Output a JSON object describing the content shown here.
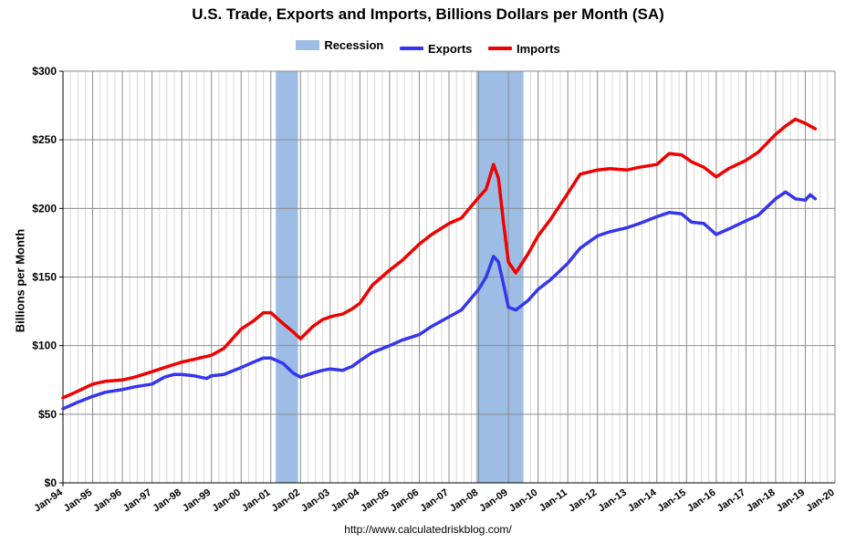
{
  "chart_data": {
    "type": "line",
    "title": "U.S. Trade, Exports and Imports, Billions Dollars per Month (SA)",
    "xlabel": "",
    "ylabel": "Billions per Month",
    "source": "http://www.calculatedriskblog.com/",
    "ylim": [
      0,
      300
    ],
    "xlim": [
      "1994-01",
      "2020-01"
    ],
    "grid": true,
    "legend_position": "top-center",
    "y_ticks": [
      {
        "value": 0,
        "label": "$0"
      },
      {
        "value": 50,
        "label": "$50"
      },
      {
        "value": 100,
        "label": "$100"
      },
      {
        "value": 150,
        "label": "$150"
      },
      {
        "value": 200,
        "label": "$200"
      },
      {
        "value": 250,
        "label": "$250"
      },
      {
        "value": 300,
        "label": "$300"
      }
    ],
    "x_ticks": [
      "Jan-94",
      "Jan-95",
      "Jan-96",
      "Jan-97",
      "Jan-98",
      "Jan-99",
      "Jan-00",
      "Jan-01",
      "Jan-02",
      "Jan-03",
      "Jan-04",
      "Jan-05",
      "Jan-06",
      "Jan-07",
      "Jan-08",
      "Jan-09",
      "Jan-10",
      "Jan-11",
      "Jan-12",
      "Jan-13",
      "Jan-14",
      "Jan-15",
      "Jan-16",
      "Jan-17",
      "Jan-18",
      "Jan-19",
      "Jan-20"
    ],
    "recessions": [
      {
        "start": "2001-03",
        "end": "2001-11"
      },
      {
        "start": "2007-12",
        "end": "2009-06"
      }
    ],
    "legend": [
      {
        "name": "Recession",
        "color": "#9dbde5",
        "kind": "box"
      },
      {
        "name": "Exports",
        "color": "#3535f0",
        "kind": "line"
      },
      {
        "name": "Imports",
        "color": "#f00000",
        "kind": "line"
      }
    ],
    "series": [
      {
        "name": "Exports",
        "color": "#3535f0",
        "points": [
          [
            "1994-01",
            54
          ],
          [
            "1994-06",
            58
          ],
          [
            "1995-01",
            63
          ],
          [
            "1995-06",
            66
          ],
          [
            "1996-01",
            68
          ],
          [
            "1996-06",
            70
          ],
          [
            "1997-01",
            72
          ],
          [
            "1997-06",
            77
          ],
          [
            "1997-10",
            79
          ],
          [
            "1998-01",
            79
          ],
          [
            "1998-06",
            78
          ],
          [
            "1998-11",
            76
          ],
          [
            "1999-01",
            78
          ],
          [
            "1999-06",
            79
          ],
          [
            "2000-01",
            84
          ],
          [
            "2000-06",
            88
          ],
          [
            "2000-10",
            91
          ],
          [
            "2001-01",
            91
          ],
          [
            "2001-06",
            87
          ],
          [
            "2001-10",
            80
          ],
          [
            "2002-01",
            77
          ],
          [
            "2002-06",
            80
          ],
          [
            "2002-10",
            82
          ],
          [
            "2003-01",
            83
          ],
          [
            "2003-06",
            82
          ],
          [
            "2003-10",
            85
          ],
          [
            "2004-01",
            89
          ],
          [
            "2004-06",
            95
          ],
          [
            "2005-01",
            100
          ],
          [
            "2005-06",
            104
          ],
          [
            "2006-01",
            108
          ],
          [
            "2006-06",
            114
          ],
          [
            "2007-01",
            121
          ],
          [
            "2007-06",
            126
          ],
          [
            "2008-01",
            141
          ],
          [
            "2008-04",
            150
          ],
          [
            "2008-07",
            165
          ],
          [
            "2008-09",
            161
          ],
          [
            "2008-11",
            145
          ],
          [
            "2009-01",
            128
          ],
          [
            "2009-04",
            126
          ],
          [
            "2009-09",
            133
          ],
          [
            "2010-01",
            141
          ],
          [
            "2010-06",
            148
          ],
          [
            "2011-01",
            160
          ],
          [
            "2011-06",
            171
          ],
          [
            "2012-01",
            180
          ],
          [
            "2012-06",
            183
          ],
          [
            "2013-01",
            186
          ],
          [
            "2013-06",
            189
          ],
          [
            "2014-01",
            194
          ],
          [
            "2014-06",
            197
          ],
          [
            "2014-11",
            196
          ],
          [
            "2015-03",
            190
          ],
          [
            "2015-08",
            189
          ],
          [
            "2016-01",
            181
          ],
          [
            "2016-06",
            185
          ],
          [
            "2017-01",
            191
          ],
          [
            "2017-06",
            195
          ],
          [
            "2018-01",
            207
          ],
          [
            "2018-05",
            212
          ],
          [
            "2018-09",
            207
          ],
          [
            "2019-01",
            206
          ],
          [
            "2019-03",
            210
          ],
          [
            "2019-05",
            207
          ]
        ]
      },
      {
        "name": "Imports",
        "color": "#f00000",
        "points": [
          [
            "1994-01",
            62
          ],
          [
            "1994-06",
            66
          ],
          [
            "1995-01",
            72
          ],
          [
            "1995-06",
            74
          ],
          [
            "1996-01",
            75
          ],
          [
            "1996-06",
            77
          ],
          [
            "1997-01",
            81
          ],
          [
            "1997-06",
            84
          ],
          [
            "1998-01",
            88
          ],
          [
            "1998-06",
            90
          ],
          [
            "1999-01",
            93
          ],
          [
            "1999-06",
            98
          ],
          [
            "2000-01",
            112
          ],
          [
            "2000-06",
            118
          ],
          [
            "2000-10",
            124
          ],
          [
            "2001-01",
            124
          ],
          [
            "2001-06",
            116
          ],
          [
            "2001-10",
            110
          ],
          [
            "2002-01",
            105
          ],
          [
            "2002-06",
            114
          ],
          [
            "2002-10",
            119
          ],
          [
            "2003-01",
            121
          ],
          [
            "2003-06",
            123
          ],
          [
            "2003-10",
            127
          ],
          [
            "2004-01",
            131
          ],
          [
            "2004-06",
            144
          ],
          [
            "2005-01",
            155
          ],
          [
            "2005-06",
            162
          ],
          [
            "2006-01",
            174
          ],
          [
            "2006-06",
            181
          ],
          [
            "2007-01",
            189
          ],
          [
            "2007-06",
            193
          ],
          [
            "2008-01",
            208
          ],
          [
            "2008-04",
            214
          ],
          [
            "2008-07",
            232
          ],
          [
            "2008-09",
            222
          ],
          [
            "2008-11",
            190
          ],
          [
            "2009-01",
            161
          ],
          [
            "2009-04",
            153
          ],
          [
            "2009-09",
            167
          ],
          [
            "2010-01",
            180
          ],
          [
            "2010-06",
            192
          ],
          [
            "2011-01",
            211
          ],
          [
            "2011-06",
            225
          ],
          [
            "2012-01",
            228
          ],
          [
            "2012-06",
            229
          ],
          [
            "2013-01",
            228
          ],
          [
            "2013-06",
            230
          ],
          [
            "2014-01",
            232
          ],
          [
            "2014-06",
            240
          ],
          [
            "2014-11",
            239
          ],
          [
            "2015-03",
            234
          ],
          [
            "2015-08",
            230
          ],
          [
            "2016-01",
            223
          ],
          [
            "2016-06",
            229
          ],
          [
            "2017-01",
            235
          ],
          [
            "2017-06",
            241
          ],
          [
            "2018-01",
            254
          ],
          [
            "2018-05",
            260
          ],
          [
            "2018-09",
            265
          ],
          [
            "2019-01",
            262
          ],
          [
            "2019-03",
            260
          ],
          [
            "2019-05",
            258
          ]
        ]
      }
    ]
  }
}
